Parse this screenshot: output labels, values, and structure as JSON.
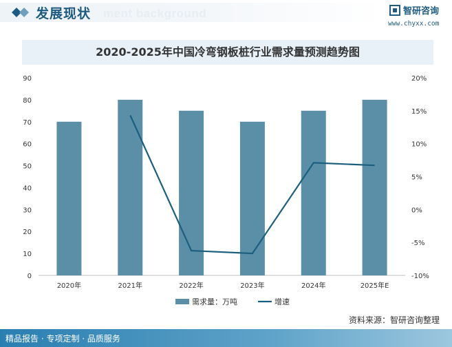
{
  "header": {
    "title": "发展现状",
    "watermark": "ment background"
  },
  "logo": {
    "name": "智研咨询",
    "url": "www.chyxx.com"
  },
  "chart_data": {
    "type": "bar+line",
    "title": "2020-2025年中国冷弯钢板桩行业需求量预测趋势图",
    "categories": [
      "2020年",
      "2021年",
      "2022年",
      "2023年",
      "2024年",
      "2025年E"
    ],
    "series": [
      {
        "name": "需求量：万吨",
        "type": "bar",
        "axis": "left",
        "color": "#5b8fa8",
        "values": [
          70,
          80,
          75,
          70,
          75,
          80
        ]
      },
      {
        "name": "增速",
        "type": "line",
        "axis": "right",
        "color": "#1b5f7e",
        "values": [
          null,
          14.3,
          -6.25,
          -6.67,
          7.1,
          6.7
        ]
      }
    ],
    "y_left": {
      "min": 0,
      "max": 90,
      "step": 10,
      "ticks": [
        "0",
        "10",
        "20",
        "30",
        "40",
        "50",
        "60",
        "70",
        "80",
        "90"
      ]
    },
    "y_right": {
      "min": -10,
      "max": 20,
      "step": 5,
      "ticks": [
        "-10%",
        "-5%",
        "0%",
        "5%",
        "10%",
        "15%",
        "20%"
      ]
    },
    "grid": false,
    "legend": "bottom-center"
  },
  "source": "资料来源：智研咨询整理",
  "footer": {
    "text": "精品报告 · 专项定制 · 品质服务"
  }
}
